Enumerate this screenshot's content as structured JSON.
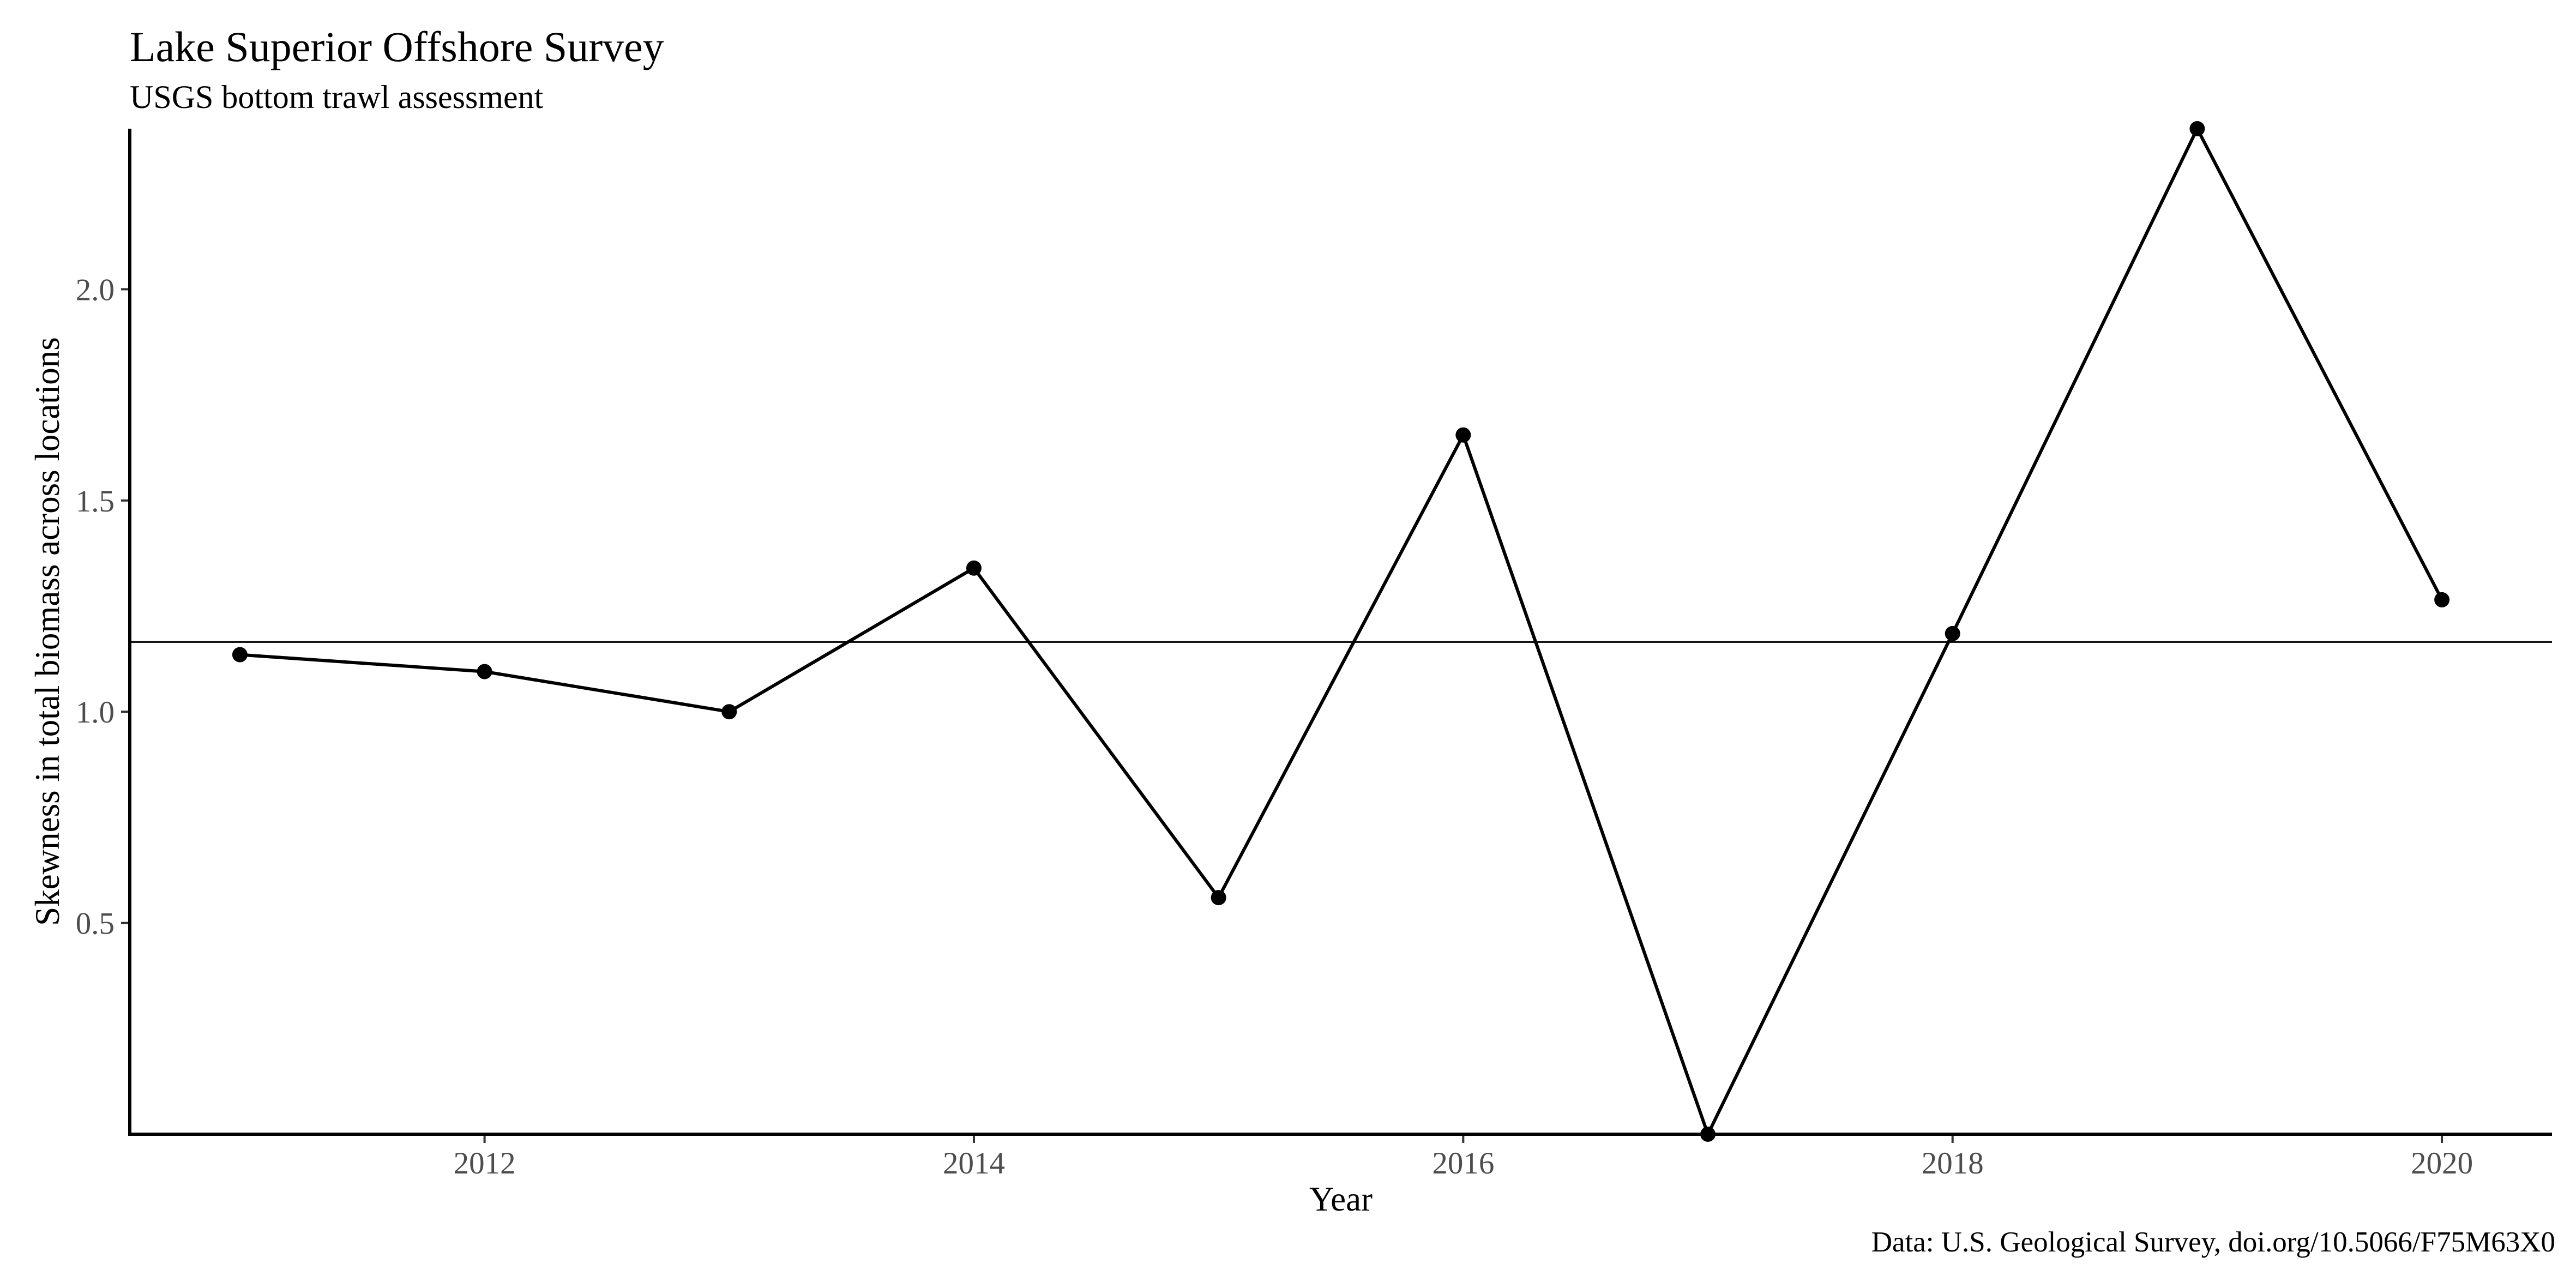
{
  "chart_data": {
    "type": "line",
    "title": "Lake Superior Offshore Survey",
    "subtitle": "USGS bottom trawl assessment",
    "xlabel": "Year",
    "ylabel": "Skewness in total biomass across locations",
    "caption": "Data: U.S. Geological Survey, doi.org/10.5066/F75M63X0",
    "x": [
      2011,
      2012,
      2013,
      2014,
      2015,
      2016,
      2017,
      2018,
      2019,
      2020
    ],
    "values": [
      1.135,
      1.095,
      1.0,
      1.34,
      0.56,
      1.655,
      0.0,
      1.185,
      2.38,
      1.265
    ],
    "reference_line": 1.165,
    "xlim": [
      2010.55,
      2020.45
    ],
    "ylim": [
      0.0,
      2.38
    ],
    "xticks": [
      2012,
      2014,
      2016,
      2018,
      2020
    ],
    "xtick_labels": [
      "2012",
      "2014",
      "2016",
      "2018",
      "2020"
    ],
    "yticks": [
      0.5,
      1.0,
      1.5,
      2.0
    ],
    "ytick_labels": [
      "0.5",
      "1.0",
      "1.5",
      "2.0"
    ],
    "grid": false,
    "line_color": "#000000"
  }
}
